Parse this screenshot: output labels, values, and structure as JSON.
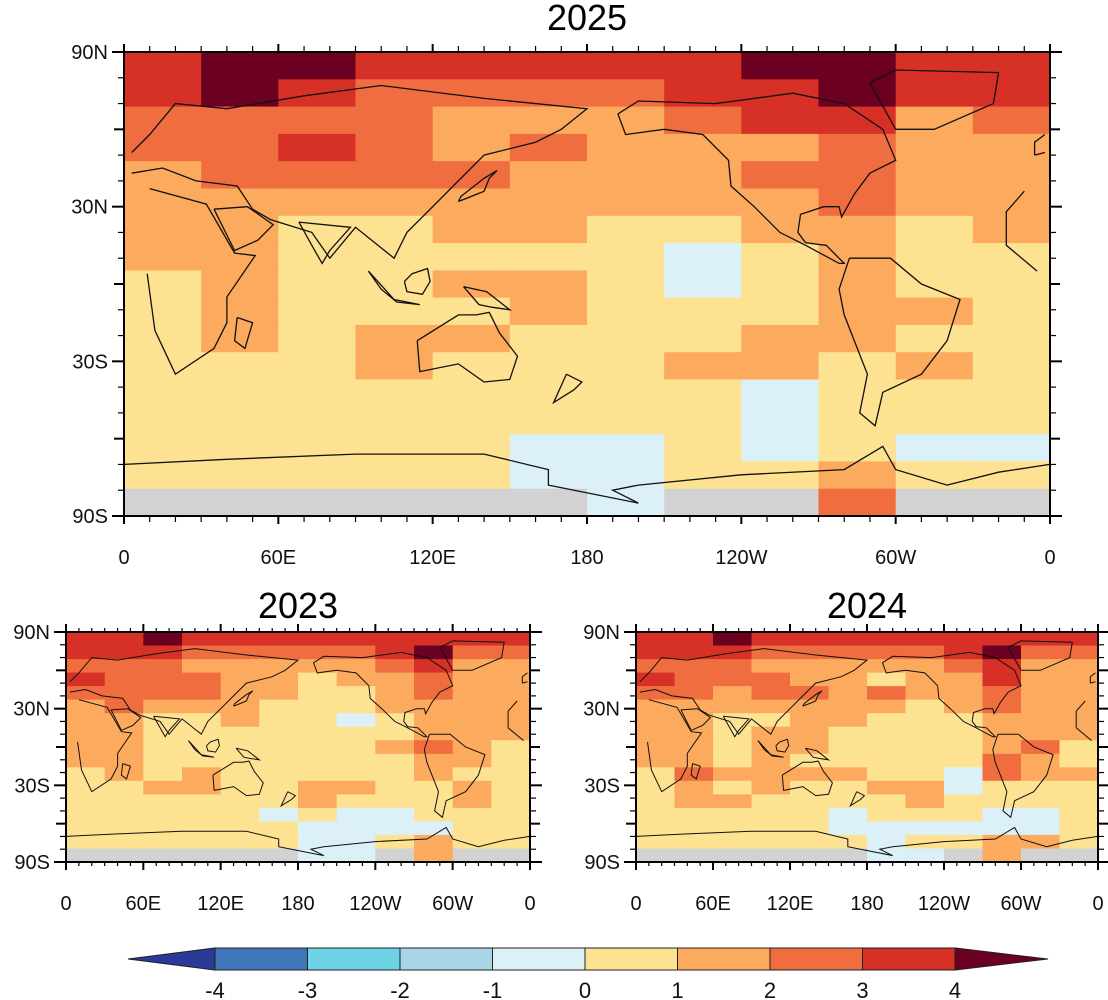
{
  "chart_data": {
    "type": "heatmap",
    "description": "Global surface temperature anomaly maps",
    "colorbar": {
      "levels": [
        -4,
        -3,
        -2,
        -1,
        0,
        1,
        2,
        3,
        4
      ],
      "tick_labels": [
        "-4",
        "-3",
        "-2",
        "-1",
        "0",
        "1",
        "2",
        "3",
        "4"
      ],
      "colors": [
        "#2b3a97",
        "#3f76b8",
        "#6fd3e6",
        "#a9d5e6",
        "#dbf1f7",
        "#fde291",
        "#fcaa5e",
        "#f06d40",
        "#d73027",
        "#6b0020"
      ],
      "extend": "both",
      "missing_color": "#d2d2d2"
    },
    "panels": [
      {
        "title": "2025",
        "xticks": [
          "0",
          "60E",
          "120E",
          "180",
          "120W",
          "60W",
          "0"
        ],
        "yticks": [
          "90N",
          "30N",
          "30S",
          "90S"
        ],
        "lon_range": [
          0,
          360
        ],
        "lat_range": [
          -90,
          90
        ],
        "lat_bands": [
          80,
          70,
          60,
          50,
          40,
          30,
          20,
          10,
          0,
          -10,
          -20,
          -30,
          -40,
          -50,
          -60,
          -70,
          -80
        ],
        "lon_bands": [
          0,
          30,
          60,
          90,
          120,
          150,
          180,
          210,
          240,
          270,
          300,
          330
        ],
        "values": [
          [
            3.5,
            4.2,
            4.5,
            3.5,
            3.5,
            3.5,
            3.5,
            3.5,
            4.0,
            4.5,
            3.5,
            3.5
          ],
          [
            3.5,
            4.2,
            3.5,
            2.5,
            2.5,
            2.5,
            2.5,
            3.5,
            3.5,
            4.2,
            3.5,
            3.0
          ],
          [
            2.5,
            2.5,
            2.5,
            2.5,
            1.5,
            1.5,
            1.5,
            2.5,
            3.0,
            3.0,
            1.5,
            2.5
          ],
          [
            2.5,
            2.5,
            3.0,
            2.5,
            1.5,
            2.5,
            1.5,
            1.5,
            1.5,
            2.5,
            1.5,
            1.5
          ],
          [
            1.5,
            2.5,
            2.5,
            2.5,
            2.5,
            1.5,
            1.5,
            1.5,
            2.5,
            2.5,
            1.5,
            1.5
          ],
          [
            1.5,
            1.5,
            1.5,
            1.5,
            1.5,
            1.5,
            1.5,
            1.5,
            1.5,
            2.5,
            1.5,
            1.5
          ],
          [
            1.5,
            1.5,
            0.5,
            0.5,
            1.5,
            1.5,
            0.5,
            0.5,
            1.5,
            1.5,
            0.5,
            1.5
          ],
          [
            1.5,
            1.5,
            0.5,
            0.5,
            0.5,
            0.5,
            0.5,
            -0.5,
            0.5,
            1.5,
            0.5,
            0.5
          ],
          [
            0.5,
            1.5,
            0.5,
            0.5,
            1.5,
            1.5,
            0.5,
            -0.5,
            0.5,
            1.5,
            0.5,
            0.5
          ],
          [
            0.5,
            1.5,
            0.5,
            0.5,
            0.5,
            1.5,
            0.5,
            0.5,
            0.5,
            1.5,
            1.5,
            0.5
          ],
          [
            0.5,
            1.5,
            0.5,
            1.5,
            1.5,
            0.5,
            0.5,
            0.5,
            1.5,
            1.5,
            0.5,
            0.5
          ],
          [
            0.5,
            0.5,
            0.5,
            1.5,
            0.5,
            0.5,
            0.5,
            1.5,
            1.5,
            0.5,
            1.5,
            0.5
          ],
          [
            0.5,
            0.5,
            0.5,
            0.5,
            0.5,
            0.5,
            0.5,
            0.5,
            -0.5,
            0.5,
            0.5,
            0.5
          ],
          [
            0.5,
            0.5,
            0.5,
            0.5,
            0.5,
            0.5,
            0.5,
            0.5,
            -0.5,
            0.5,
            0.5,
            0.5
          ],
          [
            0.5,
            0.5,
            0.5,
            0.5,
            0.5,
            -0.5,
            -0.5,
            0.5,
            -0.5,
            0.5,
            -0.5,
            -0.5
          ],
          [
            0.5,
            0.5,
            0.5,
            0.5,
            0.5,
            -0.5,
            -0.5,
            0.5,
            0.5,
            1.5,
            0.5,
            0.5
          ],
          [
            null,
            null,
            null,
            null,
            null,
            null,
            -0.5,
            null,
            null,
            2.5,
            null,
            null
          ]
        ]
      },
      {
        "title": "2023",
        "xticks": [
          "0",
          "60E",
          "120E",
          "180",
          "120W",
          "60W",
          "0"
        ],
        "yticks": [
          "90N",
          "30N",
          "30S",
          "90S"
        ],
        "lon_range": [
          0,
          360
        ],
        "lat_range": [
          -90,
          90
        ],
        "lat_bands": [
          80,
          70,
          60,
          50,
          40,
          30,
          20,
          10,
          0,
          -10,
          -20,
          -30,
          -40,
          -50,
          -60,
          -70,
          -80
        ],
        "lon_bands": [
          0,
          30,
          60,
          90,
          120,
          150,
          180,
          210,
          240,
          270,
          300,
          330
        ],
        "values": [
          [
            3.5,
            3.5,
            4.2,
            3.5,
            3.5,
            3.5,
            3.5,
            3.5,
            3.0,
            3.5,
            3.5,
            3.0
          ],
          [
            3.0,
            3.0,
            3.5,
            2.5,
            2.5,
            2.5,
            2.5,
            2.5,
            3.5,
            4.2,
            2.5,
            2.5
          ],
          [
            2.5,
            2.5,
            2.5,
            1.5,
            1.5,
            1.5,
            1.5,
            1.5,
            2.5,
            3.5,
            1.5,
            1.5
          ],
          [
            3.0,
            2.5,
            2.5,
            2.5,
            1.5,
            1.5,
            0.5,
            1.5,
            1.5,
            2.5,
            1.5,
            1.5
          ],
          [
            2.5,
            2.5,
            2.5,
            2.5,
            1.5,
            1.5,
            0.5,
            0.5,
            1.5,
            2.5,
            1.5,
            1.5
          ],
          [
            1.5,
            2.5,
            1.5,
            1.5,
            1.5,
            0.5,
            0.5,
            0.5,
            1.5,
            1.5,
            1.5,
            1.5
          ],
          [
            1.5,
            1.5,
            0.5,
            0.5,
            1.5,
            0.5,
            0.5,
            -0.5,
            0.5,
            1.5,
            1.5,
            1.5
          ],
          [
            1.5,
            1.5,
            0.5,
            0.5,
            0.5,
            0.5,
            0.5,
            0.5,
            0.5,
            1.5,
            1.5,
            1.5
          ],
          [
            1.5,
            1.5,
            0.5,
            0.5,
            0.5,
            0.5,
            0.5,
            0.5,
            1.5,
            2.5,
            1.5,
            0.5
          ],
          [
            1.5,
            1.5,
            0.5,
            0.5,
            0.5,
            0.5,
            0.5,
            0.5,
            0.5,
            1.5,
            1.5,
            0.5
          ],
          [
            0.5,
            1.5,
            0.5,
            1.5,
            0.5,
            0.5,
            0.5,
            0.5,
            0.5,
            1.5,
            0.5,
            0.5
          ],
          [
            0.5,
            0.5,
            1.5,
            1.5,
            0.5,
            0.5,
            1.5,
            1.5,
            0.5,
            0.5,
            1.5,
            0.5
          ],
          [
            0.5,
            0.5,
            0.5,
            0.5,
            0.5,
            0.5,
            1.5,
            0.5,
            0.5,
            0.5,
            1.5,
            0.5
          ],
          [
            0.5,
            0.5,
            0.5,
            0.5,
            0.5,
            -0.5,
            0.5,
            -0.5,
            -0.5,
            0.5,
            0.5,
            0.5
          ],
          [
            0.5,
            0.5,
            0.5,
            0.5,
            0.5,
            0.5,
            -0.5,
            -0.5,
            -0.5,
            -0.5,
            0.5,
            0.5
          ],
          [
            0.5,
            0.5,
            0.5,
            0.5,
            0.5,
            0.5,
            -0.5,
            -0.5,
            0.5,
            1.5,
            0.5,
            0.5
          ],
          [
            null,
            null,
            null,
            null,
            null,
            null,
            -0.5,
            -0.5,
            null,
            1.5,
            null,
            null
          ]
        ]
      },
      {
        "title": "2024",
        "xticks": [
          "0",
          "60E",
          "120E",
          "180",
          "120W",
          "60W",
          "0"
        ],
        "yticks": [
          "90N",
          "30N",
          "30S",
          "90S"
        ],
        "lon_range": [
          0,
          360
        ],
        "lat_range": [
          -90,
          90
        ],
        "lat_bands": [
          80,
          70,
          60,
          50,
          40,
          30,
          20,
          10,
          0,
          -10,
          -20,
          -30,
          -40,
          -50,
          -60,
          -70,
          -80
        ],
        "lon_bands": [
          0,
          30,
          60,
          90,
          120,
          150,
          180,
          210,
          240,
          270,
          300,
          330
        ],
        "values": [
          [
            3.5,
            3.5,
            4.2,
            3.5,
            3.5,
            3.5,
            3.5,
            3.5,
            3.5,
            3.5,
            3.5,
            3.0
          ],
          [
            3.0,
            3.0,
            3.5,
            2.5,
            2.5,
            2.5,
            2.5,
            2.5,
            3.5,
            4.2,
            2.5,
            2.5
          ],
          [
            2.5,
            2.5,
            2.5,
            1.5,
            1.5,
            1.5,
            1.5,
            1.5,
            2.5,
            3.5,
            1.5,
            1.5
          ],
          [
            3.0,
            2.5,
            2.5,
            2.5,
            1.5,
            1.5,
            0.5,
            1.5,
            1.5,
            3.0,
            1.5,
            1.5
          ],
          [
            2.5,
            2.5,
            1.5,
            2.5,
            2.5,
            1.5,
            2.5,
            1.5,
            1.5,
            2.5,
            1.5,
            1.5
          ],
          [
            1.5,
            1.5,
            1.5,
            1.5,
            1.5,
            1.5,
            1.5,
            0.5,
            1.5,
            2.5,
            1.5,
            1.5
          ],
          [
            1.5,
            1.5,
            0.5,
            0.5,
            1.5,
            1.5,
            0.5,
            0.5,
            0.5,
            1.5,
            1.5,
            1.5
          ],
          [
            1.5,
            1.5,
            0.5,
            1.5,
            1.5,
            0.5,
            0.5,
            0.5,
            0.5,
            1.5,
            1.5,
            1.5
          ],
          [
            1.5,
            1.5,
            0.5,
            1.5,
            1.5,
            0.5,
            0.5,
            0.5,
            0.5,
            1.5,
            2.5,
            0.5
          ],
          [
            1.5,
            1.5,
            0.5,
            1.5,
            0.5,
            0.5,
            0.5,
            0.5,
            0.5,
            2.5,
            1.5,
            0.5
          ],
          [
            0.5,
            2.5,
            1.5,
            1.5,
            1.5,
            1.5,
            0.5,
            0.5,
            -0.5,
            2.5,
            1.5,
            1.5
          ],
          [
            0.5,
            1.5,
            0.5,
            1.5,
            0.5,
            0.5,
            1.5,
            1.5,
            -0.5,
            0.5,
            0.5,
            0.5
          ],
          [
            0.5,
            1.5,
            1.5,
            0.5,
            0.5,
            0.5,
            0.5,
            1.5,
            0.5,
            0.5,
            0.5,
            0.5
          ],
          [
            0.5,
            0.5,
            0.5,
            0.5,
            0.5,
            -0.5,
            0.5,
            0.5,
            0.5,
            -0.5,
            -0.5,
            0.5
          ],
          [
            0.5,
            0.5,
            0.5,
            0.5,
            0.5,
            -0.5,
            -0.5,
            -0.5,
            -0.5,
            -0.5,
            -0.5,
            0.5
          ],
          [
            0.5,
            0.5,
            0.5,
            0.5,
            0.5,
            0.5,
            -0.5,
            0.5,
            0.5,
            1.5,
            1.5,
            0.5
          ],
          [
            null,
            null,
            null,
            null,
            null,
            null,
            -0.5,
            -0.5,
            null,
            1.5,
            null,
            null
          ]
        ]
      }
    ]
  }
}
